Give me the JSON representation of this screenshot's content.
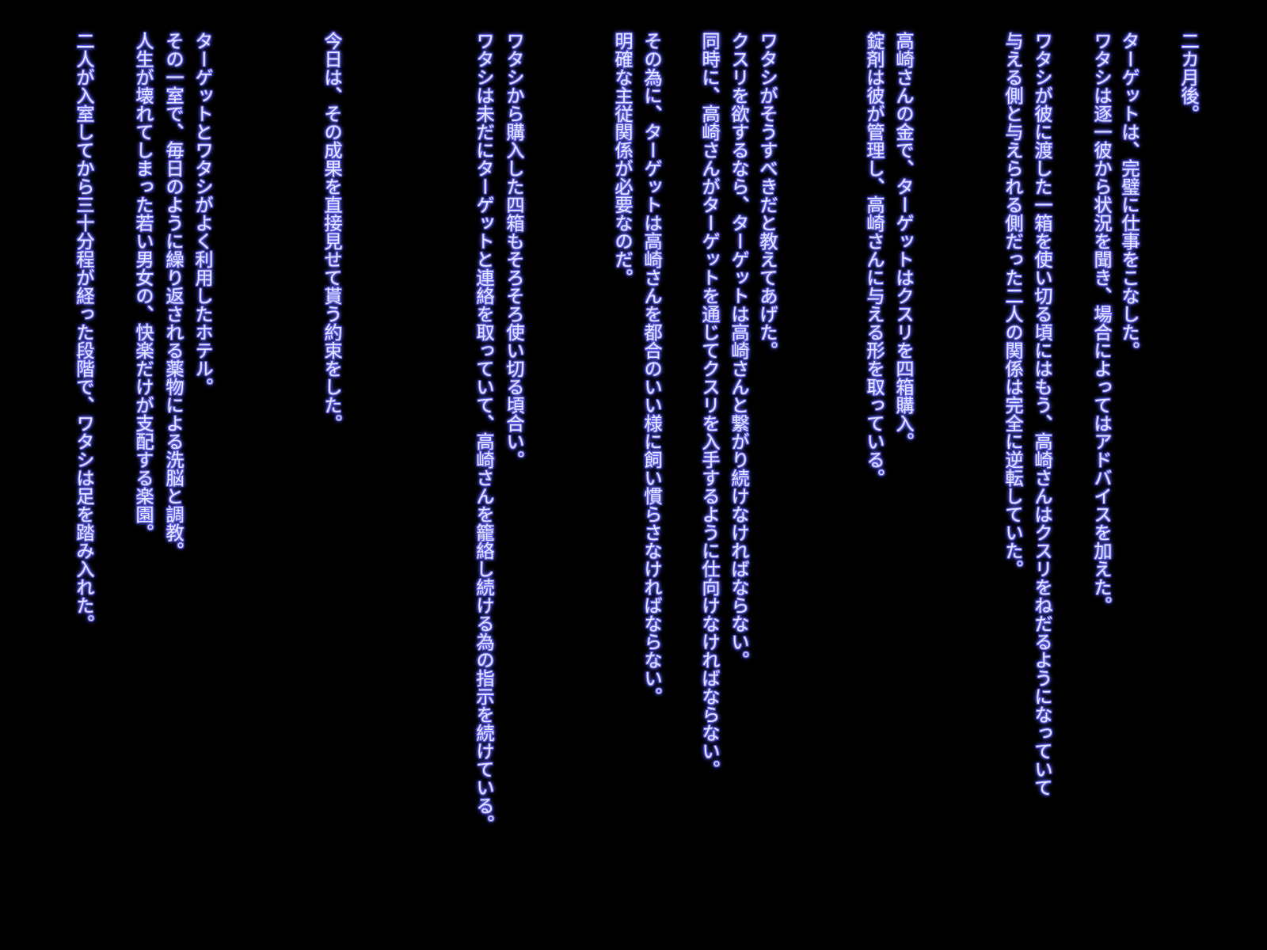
{
  "lines": [
    "二カ月後。",
    "ターゲットは、完璧に仕事をこなした。",
    "ワタシは逐一彼から状況を聞き、場合によってはアドバイスを加えた。",
    "ワタシが彼に渡した一箱を使い切る頃にはもう、高崎さんはクスリをねだるようになっていて",
    "与える側と与えられる側だった二人の関係は完全に逆転していた。",
    "高崎さんの金で、ターゲットはクスリを四箱購入。",
    "錠剤は彼が管理し、高崎さんに与える形を取っている。",
    "ワタシがそうすべきだと教えてあげた。",
    "クスリを欲するなら、ターゲットは高崎さんと繋がり続けなければならない。",
    "同時に、高崎さんがターゲットを通じてクスリを入手するように仕向けなければならない。",
    "その為に、ターゲットは高崎さんを都合のいい様に飼い慣らさなければならない。",
    "明確な主従関係が必要なのだ。",
    "ワタシから購入した四箱もそろそろ使い切る頃合い。",
    "ワタシは未だにターゲットと連絡を取っていて、高崎さんを籠絡し続ける為の指示を続けている。",
    "今日は、その成果を直接見せて貰う約束をした。",
    "ターゲットとワタシがよく利用したホテル。",
    "その一室で、毎日のように繰り返される薬物による洗脳と調教。",
    "人生が壊れてしまった若い男女の、快楽だけが支配する楽園。",
    "二人が入室してから三十分程が経った段階で、ワタシは足を踏み入れた。"
  ],
  "colors": {
    "text": "#e8e8ff",
    "glow": "#6a6af0",
    "background": "#000000"
  }
}
